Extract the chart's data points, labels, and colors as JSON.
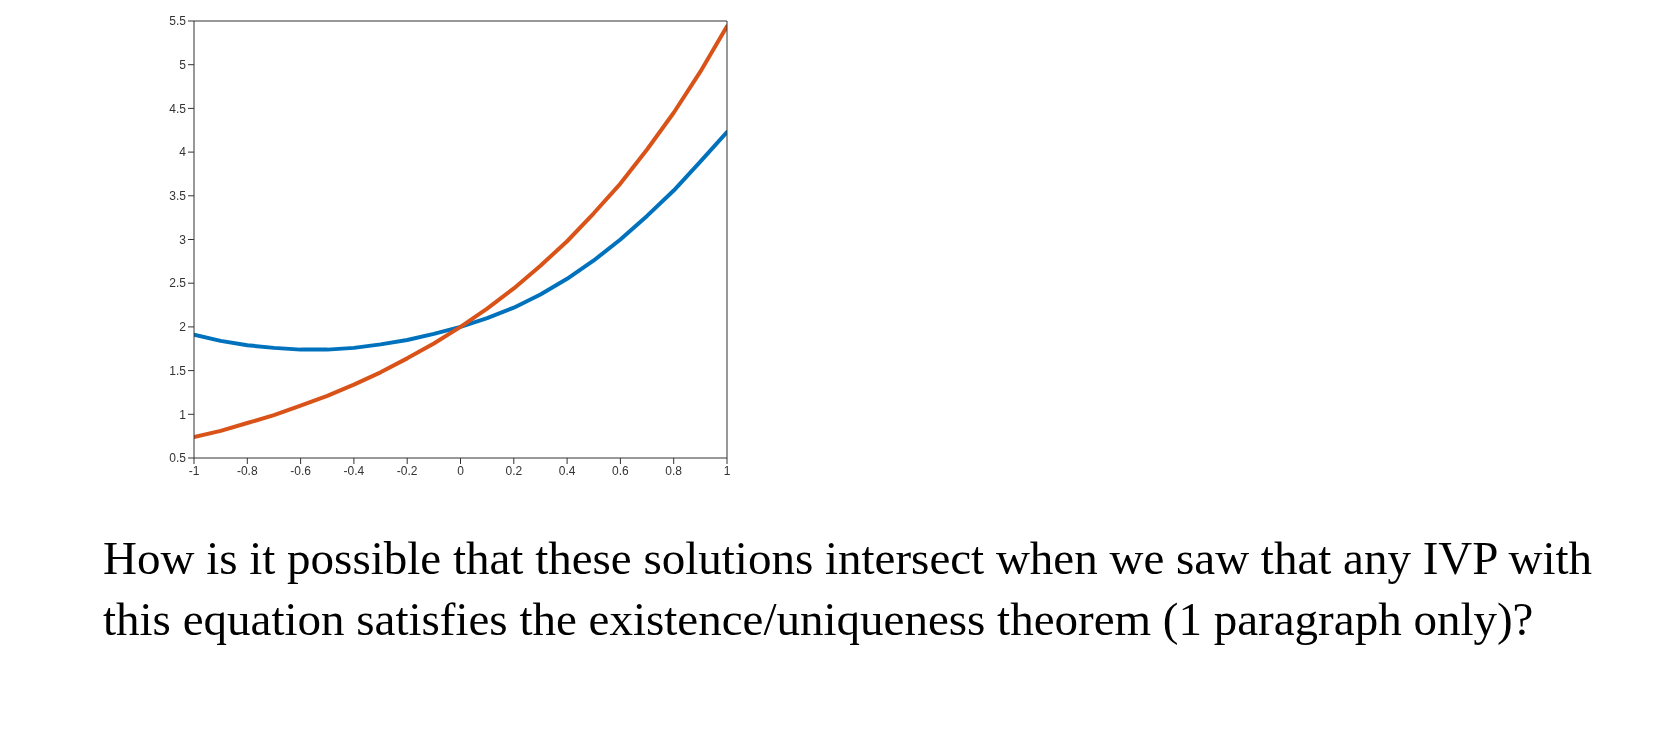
{
  "chart_data": {
    "type": "line",
    "x": [
      -1,
      -0.9,
      -0.8,
      -0.7,
      -0.6,
      -0.5,
      -0.4,
      -0.3,
      -0.2,
      -0.1,
      0,
      0.1,
      0.2,
      0.3,
      0.4,
      0.5,
      0.6,
      0.7,
      0.8,
      0.9,
      1
    ],
    "series": [
      {
        "color": "#0072bd",
        "values": [
          1.91,
          1.84,
          1.79,
          1.76,
          1.74,
          1.74,
          1.76,
          1.8,
          1.85,
          1.92,
          2.0,
          2.1,
          2.22,
          2.37,
          2.55,
          2.76,
          3.0,
          3.27,
          3.56,
          3.89,
          4.23
        ]
      },
      {
        "color": "#d95319",
        "values": [
          0.74,
          0.81,
          0.9,
          0.99,
          1.1,
          1.21,
          1.34,
          1.48,
          1.64,
          1.81,
          2.0,
          2.21,
          2.44,
          2.7,
          2.98,
          3.3,
          3.64,
          4.03,
          4.45,
          4.92,
          5.44
        ]
      }
    ],
    "xlim": [
      -1,
      1
    ],
    "xticks": [
      -1,
      -0.8,
      -0.6,
      -0.4,
      -0.2,
      0,
      0.2,
      0.4,
      0.6,
      0.8,
      1
    ],
    "ylim": [
      0.5,
      5.5
    ],
    "yticks": [
      0.5,
      1,
      1.5,
      2,
      2.5,
      3,
      3.5,
      4,
      4.5,
      5,
      5.5
    ],
    "grid": false,
    "marker": "none",
    "line_style": "solid",
    "annotations": [
      "How is it possible that these solutions intersect when we saw that any IVP with this equation satisfies the existence/uniqueness theorem (1 paragraph only)?"
    ]
  }
}
